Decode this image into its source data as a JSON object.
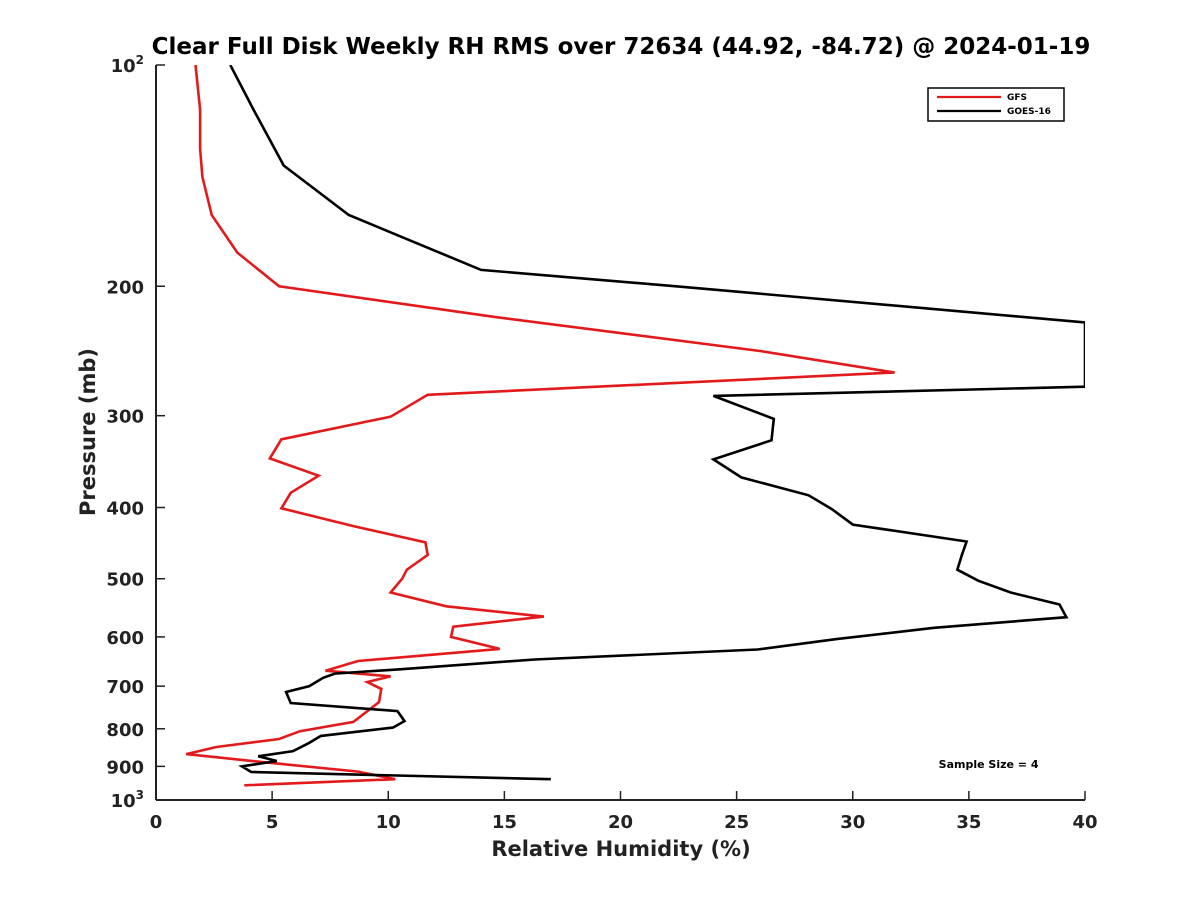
{
  "chart_data": {
    "type": "line",
    "title": "Clear Full Disk Weekly RH RMS over 72634 (44.92, -84.72) @ 2024-01-19",
    "xlabel": "Relative Humidity (%)",
    "ylabel": "Pressure (mb)",
    "xlim": [
      0,
      40
    ],
    "ylim": [
      100,
      1000
    ],
    "yscale": "log",
    "y_reversed": true,
    "xticks": [
      0,
      5,
      10,
      15,
      20,
      25,
      30,
      35,
      40
    ],
    "xtick_labels": [
      "0",
      "5",
      "10",
      "15",
      "20",
      "25",
      "30",
      "35",
      "40"
    ],
    "yticks": [
      {
        "value": 100,
        "base": "10",
        "exp": "2"
      },
      {
        "value": 200,
        "label": "200"
      },
      {
        "value": 300,
        "label": "300"
      },
      {
        "value": 400,
        "label": "400"
      },
      {
        "value": 500,
        "label": "500"
      },
      {
        "value": 600,
        "label": "600"
      },
      {
        "value": 700,
        "label": "700"
      },
      {
        "value": 800,
        "label": "800"
      },
      {
        "value": 900,
        "label": "900"
      },
      {
        "value": 1000,
        "base": "10",
        "exp": "3"
      }
    ],
    "legend_position": "top-right",
    "grid": false,
    "series": [
      {
        "name": "GFS",
        "color": "#e31a1c",
        "points": [
          [
            1.7,
            100
          ],
          [
            1.9,
            115
          ],
          [
            1.9,
            130
          ],
          [
            2.0,
            142
          ],
          [
            2.4,
            160
          ],
          [
            3.5,
            180
          ],
          [
            5.3,
            200
          ],
          [
            14.5,
            220
          ],
          [
            26.0,
            245
          ],
          [
            31.8,
            262
          ],
          [
            11.7,
            281
          ],
          [
            10.1,
            301
          ],
          [
            5.4,
            323
          ],
          [
            4.9,
            343
          ],
          [
            7.0,
            362
          ],
          [
            5.8,
            382
          ],
          [
            5.4,
            401
          ],
          [
            8.5,
            424
          ],
          [
            11.6,
            446
          ],
          [
            11.7,
            464
          ],
          [
            10.8,
            486
          ],
          [
            10.6,
            500
          ],
          [
            10.1,
            522
          ],
          [
            12.5,
            545
          ],
          [
            16.7,
            563
          ],
          [
            12.8,
            581
          ],
          [
            12.7,
            600
          ],
          [
            14.8,
            623
          ],
          [
            8.7,
            647
          ],
          [
            7.3,
            667
          ],
          [
            10.1,
            679
          ],
          [
            9.1,
            691
          ],
          [
            9.7,
            706
          ],
          [
            9.6,
            736
          ],
          [
            8.5,
            783
          ],
          [
            6.2,
            806
          ],
          [
            5.3,
            826
          ],
          [
            2.6,
            847
          ],
          [
            1.3,
            866
          ],
          [
            4.9,
            890
          ],
          [
            8.7,
            915
          ],
          [
            10.3,
            937
          ],
          [
            3.8,
            955
          ]
        ]
      },
      {
        "name": "GOES-16",
        "color": "#000000",
        "points": [
          [
            3.2,
            100
          ],
          [
            4.2,
            115
          ],
          [
            5.5,
            137
          ],
          [
            8.3,
            160
          ],
          [
            14.0,
            190
          ],
          [
            22.4,
            200
          ],
          [
            40.0,
            224
          ],
          [
            40.0,
            274
          ],
          [
            24.0,
            282
          ],
          [
            26.6,
            303
          ],
          [
            26.5,
            324
          ],
          [
            24.0,
            344
          ],
          [
            25.2,
            364
          ],
          [
            28.1,
            385
          ],
          [
            29.1,
            402
          ],
          [
            30.0,
            422
          ],
          [
            34.9,
            445
          ],
          [
            34.7,
            464
          ],
          [
            34.5,
            486
          ],
          [
            35.4,
            503
          ],
          [
            36.8,
            522
          ],
          [
            38.9,
            542
          ],
          [
            39.2,
            564
          ],
          [
            33.5,
            583
          ],
          [
            29.3,
            604
          ],
          [
            25.9,
            624
          ],
          [
            16.3,
            644
          ],
          [
            10.5,
            664
          ],
          [
            7.7,
            673
          ],
          [
            7.2,
            682
          ],
          [
            6.6,
            700
          ],
          [
            5.6,
            713
          ],
          [
            5.8,
            738
          ],
          [
            10.4,
            757
          ],
          [
            10.7,
            781
          ],
          [
            10.2,
            797
          ],
          [
            7.1,
            818
          ],
          [
            6.6,
            836
          ],
          [
            5.9,
            858
          ],
          [
            4.4,
            872
          ],
          [
            5.2,
            885
          ],
          [
            3.7,
            900
          ],
          [
            4.1,
            916
          ],
          [
            17.0,
            937
          ]
        ]
      }
    ],
    "annotations": [
      {
        "text": "Sample Size = 4",
        "x": 33.7,
        "y": 905
      }
    ]
  }
}
